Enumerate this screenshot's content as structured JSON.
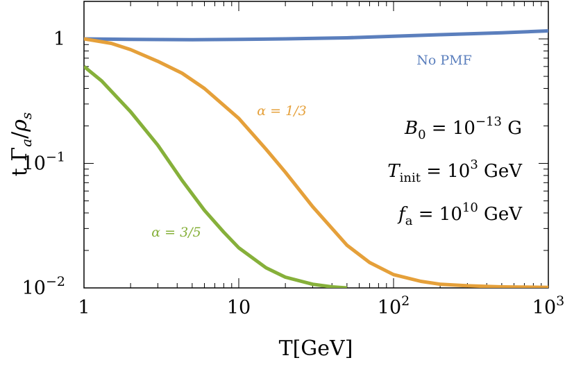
{
  "chart_data": {
    "type": "line",
    "title": "",
    "xlabel": "T[GeV]",
    "ylabel": "t Γ_a/ρ_s",
    "xscale": "log",
    "yscale": "log",
    "xlim": [
      1,
      1000
    ],
    "ylim": [
      0.01,
      2
    ],
    "grid": false,
    "x_ticks": [
      {
        "value": 1,
        "label": "1"
      },
      {
        "value": 10,
        "label": "10"
      },
      {
        "value": 100,
        "label": "10",
        "exp": "2"
      },
      {
        "value": 1000,
        "label": "10",
        "exp": "3"
      }
    ],
    "y_ticks": [
      {
        "value": 1,
        "label": "1"
      },
      {
        "value": 0.1,
        "label": "10",
        "exp": "−1"
      },
      {
        "value": 0.01,
        "label": "10",
        "exp": "−2"
      }
    ],
    "series": [
      {
        "name": "No PMF",
        "color": "#5b7fbd",
        "x": [
          1,
          2,
          5,
          10,
          20,
          50,
          100,
          200,
          500,
          1000
        ],
        "y": [
          1.0,
          0.99,
          0.985,
          0.99,
          1.0,
          1.02,
          1.05,
          1.08,
          1.12,
          1.16
        ]
      },
      {
        "name": "α = 1/3",
        "color": "#e5a03a",
        "x": [
          1,
          1.5,
          2,
          3,
          4.3,
          6,
          10,
          15,
          20,
          30,
          50,
          70,
          100,
          150,
          200,
          300,
          500,
          1000
        ],
        "y": [
          1.0,
          0.92,
          0.82,
          0.66,
          0.53,
          0.4,
          0.23,
          0.13,
          0.085,
          0.045,
          0.022,
          0.016,
          0.0128,
          0.0113,
          0.0107,
          0.0104,
          0.0102,
          0.0101
        ]
      },
      {
        "name": "α = 3/5",
        "color": "#86b03a",
        "x": [
          1,
          1.3,
          2,
          3,
          4.3,
          6,
          8,
          10,
          15,
          20,
          30,
          40,
          50
        ],
        "y": [
          0.6,
          0.46,
          0.26,
          0.14,
          0.073,
          0.042,
          0.028,
          0.021,
          0.0145,
          0.0122,
          0.0107,
          0.0102,
          0.01
        ]
      }
    ],
    "annotations": [
      {
        "text": "No PMF",
        "series": 0
      },
      {
        "text": "α = 1/3",
        "series": 1
      },
      {
        "text": "α = 3/5",
        "series": 2
      }
    ],
    "parameters": [
      {
        "symbol": "B",
        "sub": "0",
        "eq": " = 10",
        "exp": "−13",
        "unit": " G"
      },
      {
        "symbol": "T",
        "sub": "init",
        "eq": " = 10",
        "exp": "3",
        "unit": " GeV"
      },
      {
        "symbol": "f",
        "sub": "a",
        "eq": " = 10",
        "exp": "10",
        "unit": " GeV"
      }
    ]
  }
}
